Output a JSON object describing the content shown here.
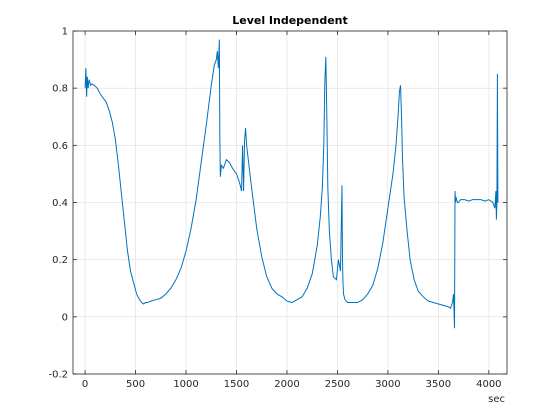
{
  "chart_data": {
    "type": "line",
    "title": "Level Independent",
    "xlabel": "sec",
    "ylabel": "",
    "xlim": [
      -120,
      4180
    ],
    "ylim": [
      -0.2,
      1
    ],
    "xticks": [
      0,
      500,
      1000,
      1500,
      2000,
      2500,
      3000,
      3500,
      4000
    ],
    "xtick_labels": [
      "0",
      "500",
      "1000",
      "1500",
      "2000",
      "2500",
      "3000",
      "3500",
      "4000"
    ],
    "yticks": [
      -0.2,
      0,
      0.2,
      0.4,
      0.6,
      0.8,
      1
    ],
    "ytick_labels": [
      "-0.2",
      "0",
      "0.2",
      "0.4",
      "0.6",
      "0.8",
      "1"
    ],
    "grid": true,
    "line_color": "#0072BD",
    "series": [
      {
        "x": [
          0,
          8,
          15,
          22,
          30,
          40,
          55,
          70,
          90,
          120,
          150,
          180,
          210,
          240,
          270,
          300,
          330,
          360,
          390,
          420,
          450,
          480,
          510,
          540,
          560,
          580,
          600,
          620,
          650,
          700,
          750,
          800,
          850,
          900,
          950,
          1000,
          1050,
          1100,
          1150,
          1200,
          1250,
          1280,
          1300,
          1310,
          1320,
          1330,
          1335,
          1340,
          1350,
          1370,
          1400,
          1430,
          1460,
          1500,
          1530,
          1550,
          1560,
          1570,
          1580,
          1590,
          1600,
          1650,
          1700,
          1750,
          1800,
          1850,
          1900,
          1950,
          2000,
          2050,
          2100,
          2150,
          2200,
          2250,
          2300,
          2330,
          2350,
          2365,
          2375,
          2385,
          2395,
          2405,
          2420,
          2440,
          2460,
          2490,
          2510,
          2530,
          2545,
          2550,
          2555,
          2560,
          2575,
          2600,
          2650,
          2700,
          2750,
          2800,
          2850,
          2900,
          2950,
          3000,
          3050,
          3080,
          3100,
          3115,
          3125,
          3135,
          3145,
          3160,
          3190,
          3220,
          3260,
          3300,
          3350,
          3400,
          3450,
          3500,
          3550,
          3600,
          3620,
          3640,
          3650,
          3660,
          3665,
          3670,
          3675,
          3680,
          3690,
          3700,
          3720,
          3760,
          3800,
          3840,
          3880,
          3920,
          3960,
          4000,
          4040,
          4060,
          4070,
          4075,
          4080,
          4085,
          4090
        ],
        "y": [
          0.8,
          0.87,
          0.77,
          0.84,
          0.8,
          0.83,
          0.81,
          0.815,
          0.81,
          0.8,
          0.78,
          0.765,
          0.75,
          0.72,
          0.68,
          0.62,
          0.53,
          0.43,
          0.33,
          0.23,
          0.16,
          0.12,
          0.08,
          0.06,
          0.05,
          0.045,
          0.05,
          0.05,
          0.055,
          0.06,
          0.065,
          0.08,
          0.1,
          0.13,
          0.17,
          0.23,
          0.31,
          0.41,
          0.54,
          0.67,
          0.81,
          0.88,
          0.9,
          0.93,
          0.87,
          0.97,
          0.62,
          0.49,
          0.53,
          0.52,
          0.55,
          0.54,
          0.52,
          0.5,
          0.47,
          0.44,
          0.6,
          0.44,
          0.62,
          0.66,
          0.6,
          0.45,
          0.31,
          0.21,
          0.14,
          0.1,
          0.08,
          0.07,
          0.055,
          0.05,
          0.06,
          0.07,
          0.1,
          0.15,
          0.25,
          0.35,
          0.45,
          0.6,
          0.82,
          0.91,
          0.7,
          0.45,
          0.3,
          0.2,
          0.14,
          0.13,
          0.2,
          0.16,
          0.46,
          0.2,
          0.12,
          0.08,
          0.06,
          0.05,
          0.05,
          0.05,
          0.06,
          0.08,
          0.11,
          0.17,
          0.26,
          0.38,
          0.5,
          0.6,
          0.7,
          0.79,
          0.81,
          0.7,
          0.55,
          0.42,
          0.3,
          0.2,
          0.13,
          0.09,
          0.07,
          0.055,
          0.05,
          0.045,
          0.04,
          0.035,
          0.03,
          0.05,
          0.08,
          -0.04,
          0.44,
          0.4,
          0.42,
          0.41,
          0.4,
          0.4,
          0.41,
          0.41,
          0.405,
          0.41,
          0.41,
          0.41,
          0.405,
          0.41,
          0.4,
          0.38,
          0.44,
          0.34,
          0.4,
          0.85,
          0.4
        ]
      }
    ]
  }
}
